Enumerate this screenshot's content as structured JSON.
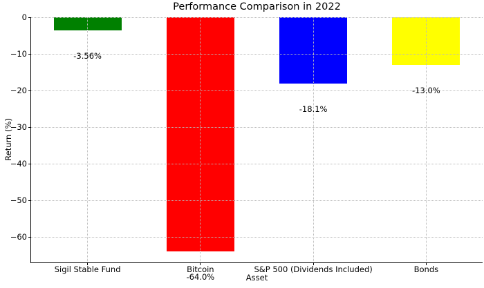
{
  "chart_data": {
    "type": "bar",
    "title": "Performance Comparison in 2022",
    "xlabel": "Asset",
    "ylabel": "Return (%)",
    "categories": [
      "Sigil Stable Fund",
      "Bitcoin",
      "S&P 500 (Dividends Included)",
      "Bonds"
    ],
    "values": [
      -3.56,
      -64.0,
      -18.1,
      -13.0
    ],
    "bar_labels": [
      "-3.56%",
      "-64.0%",
      "-18.1%",
      "-13.0%"
    ],
    "bar_colors": [
      "#008000",
      "#ff0000",
      "#0000ff",
      "#ffff00"
    ],
    "yticks": [
      0,
      -10,
      -20,
      -30,
      -40,
      -50,
      -60
    ],
    "ytick_labels": [
      "0",
      "−10",
      "−20",
      "−30",
      "−40",
      "−50",
      "−60"
    ],
    "ylim": [
      -67,
      0
    ],
    "grid": true,
    "grid_linestyle": "dotted",
    "grid_above_bars": true,
    "legend": "none",
    "background_color": "#ffffff"
  }
}
